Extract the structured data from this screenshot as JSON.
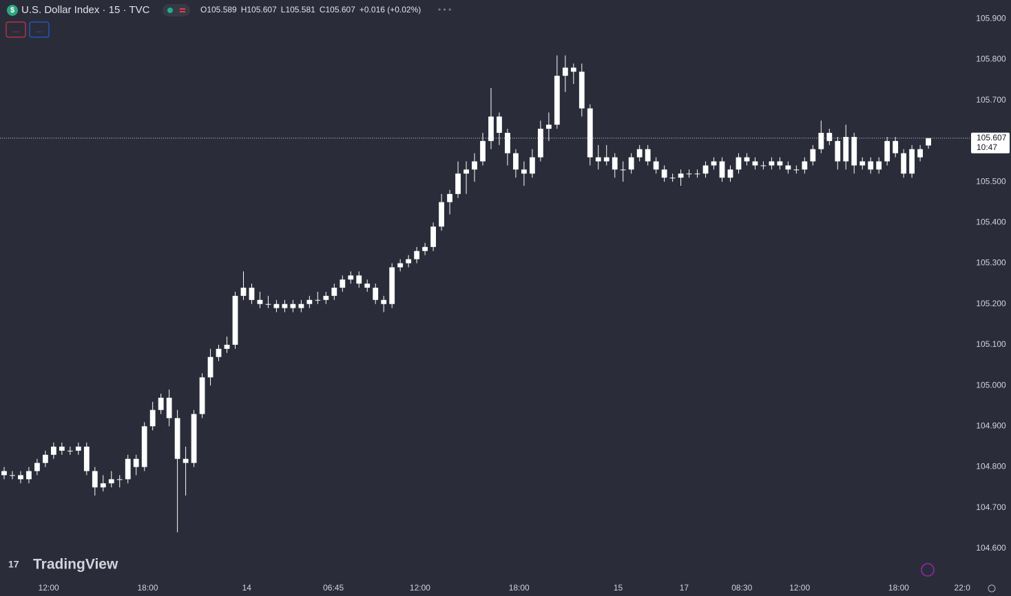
{
  "chart_data": {
    "type": "candlestick",
    "title": "U.S. Dollar Index · 15 · TVC",
    "legend_values": [
      "O105.589",
      "H105.607",
      "L105.581",
      "C105.607",
      "+0.016 (+0.02%)"
    ],
    "watermark": "TradingView",
    "countdown": "10:47",
    "color": "#ffffff",
    "open": [
      104.79,
      104.78,
      104.78,
      104.77,
      104.79,
      104.81,
      104.83,
      104.85,
      104.84,
      104.84,
      104.85,
      104.79,
      104.75,
      104.76,
      104.77,
      104.77,
      104.82,
      104.8,
      104.9,
      104.94,
      104.97,
      104.92,
      104.82,
      104.81,
      104.93,
      105.02,
      105.07,
      105.09,
      105.1,
      105.22,
      105.24,
      105.21,
      105.2,
      105.2,
      105.19,
      105.2,
      105.19,
      105.2,
      105.21,
      105.21,
      105.22,
      105.24,
      105.26,
      105.27,
      105.25,
      105.24,
      105.21,
      105.2,
      105.29,
      105.3,
      105.31,
      105.33,
      105.34,
      105.39,
      105.45,
      105.47,
      105.52,
      105.53,
      105.55,
      105.6,
      105.66,
      105.62,
      105.57,
      105.53,
      105.52,
      105.56,
      105.63,
      105.64,
      105.76,
      105.78,
      105.77,
      105.68,
      105.56,
      105.55,
      105.56,
      105.53,
      105.53,
      105.56,
      105.58,
      105.55,
      105.53,
      105.51,
      105.51,
      105.52,
      105.52,
      105.52,
      105.54,
      105.55,
      105.51,
      105.53,
      105.56,
      105.55,
      105.54,
      105.54,
      105.55,
      105.54,
      105.53,
      105.53,
      105.55,
      105.58,
      105.62,
      105.6,
      105.55,
      105.61,
      105.54,
      105.55,
      105.53,
      105.55,
      105.6,
      105.57,
      105.52,
      105.58,
      105.589
    ],
    "high": [
      104.8,
      104.79,
      104.79,
      104.8,
      104.82,
      104.84,
      104.86,
      104.86,
      104.85,
      104.86,
      104.86,
      104.8,
      104.78,
      104.79,
      104.78,
      104.83,
      104.83,
      104.91,
      104.96,
      104.98,
      104.99,
      104.94,
      104.85,
      104.94,
      105.03,
      105.09,
      105.1,
      105.12,
      105.23,
      105.28,
      105.25,
      105.23,
      105.22,
      105.21,
      105.21,
      105.21,
      105.21,
      105.22,
      105.23,
      105.23,
      105.25,
      105.27,
      105.28,
      105.28,
      105.26,
      105.25,
      105.22,
      105.3,
      105.31,
      105.32,
      105.34,
      105.35,
      105.4,
      105.47,
      105.48,
      105.55,
      105.55,
      105.57,
      105.62,
      105.73,
      105.67,
      105.63,
      105.58,
      105.55,
      105.58,
      105.65,
      105.67,
      105.81,
      105.81,
      105.79,
      105.79,
      105.69,
      105.59,
      105.59,
      105.57,
      105.55,
      105.57,
      105.59,
      105.59,
      105.56,
      105.54,
      105.52,
      105.53,
      105.53,
      105.53,
      105.55,
      105.56,
      105.56,
      105.54,
      105.57,
      105.57,
      105.56,
      105.55,
      105.56,
      105.56,
      105.55,
      105.54,
      105.56,
      105.59,
      105.65,
      105.63,
      105.61,
      105.64,
      105.62,
      105.56,
      105.56,
      105.56,
      105.61,
      105.61,
      105.58,
      105.59,
      105.59,
      105.607
    ],
    "low": [
      104.77,
      104.77,
      104.76,
      104.76,
      104.78,
      104.8,
      104.82,
      104.83,
      104.83,
      104.83,
      104.78,
      104.73,
      104.74,
      104.75,
      104.75,
      104.76,
      104.78,
      104.79,
      104.89,
      104.93,
      104.9,
      104.64,
      104.73,
      104.8,
      104.92,
      105.0,
      105.06,
      105.08,
      105.09,
      105.21,
      105.2,
      105.19,
      105.19,
      105.18,
      105.18,
      105.18,
      105.18,
      105.19,
      105.2,
      105.2,
      105.21,
      105.23,
      105.25,
      105.24,
      105.23,
      105.2,
      105.18,
      105.19,
      105.28,
      105.29,
      105.3,
      105.32,
      105.33,
      105.38,
      105.42,
      105.46,
      105.47,
      105.5,
      105.54,
      105.58,
      105.59,
      105.54,
      105.51,
      105.49,
      105.51,
      105.55,
      105.6,
      105.63,
      105.72,
      105.74,
      105.66,
      105.54,
      105.53,
      105.54,
      105.51,
      105.5,
      105.52,
      105.55,
      105.54,
      105.52,
      105.5,
      105.5,
      105.49,
      105.51,
      105.51,
      105.51,
      105.53,
      105.5,
      105.5,
      105.52,
      105.54,
      105.53,
      105.53,
      105.53,
      105.53,
      105.52,
      105.52,
      105.52,
      105.54,
      105.57,
      105.59,
      105.53,
      105.53,
      105.52,
      105.53,
      105.52,
      105.52,
      105.54,
      105.56,
      105.51,
      105.51,
      105.55,
      105.581
    ],
    "close": [
      104.78,
      104.78,
      104.77,
      104.79,
      104.81,
      104.83,
      104.85,
      104.84,
      104.84,
      104.85,
      104.79,
      104.75,
      104.76,
      104.77,
      104.77,
      104.82,
      104.8,
      104.9,
      104.94,
      104.97,
      104.92,
      104.82,
      104.81,
      104.93,
      105.02,
      105.07,
      105.09,
      105.1,
      105.22,
      105.24,
      105.21,
      105.2,
      105.2,
      105.19,
      105.2,
      105.19,
      105.2,
      105.21,
      105.21,
      105.22,
      105.24,
      105.26,
      105.27,
      105.25,
      105.24,
      105.21,
      105.2,
      105.29,
      105.3,
      105.31,
      105.33,
      105.34,
      105.39,
      105.45,
      105.47,
      105.52,
      105.53,
      105.55,
      105.6,
      105.66,
      105.62,
      105.57,
      105.53,
      105.52,
      105.56,
      105.63,
      105.64,
      105.76,
      105.78,
      105.77,
      105.68,
      105.56,
      105.55,
      105.56,
      105.53,
      105.53,
      105.56,
      105.58,
      105.55,
      105.53,
      105.51,
      105.51,
      105.52,
      105.52,
      105.52,
      105.54,
      105.55,
      105.51,
      105.53,
      105.56,
      105.55,
      105.54,
      105.54,
      105.55,
      105.54,
      105.53,
      105.53,
      105.55,
      105.58,
      105.62,
      105.6,
      105.55,
      105.61,
      105.54,
      105.55,
      105.53,
      105.55,
      105.6,
      105.57,
      105.52,
      105.58,
      105.56,
      105.607
    ],
    "xlim": [
      -0.5,
      117
    ],
    "xticks": [
      {
        "value": 5.4,
        "label": "12:00"
      },
      {
        "value": 17.4,
        "label": "18:00"
      },
      {
        "value": 29.4,
        "label": "14"
      },
      {
        "value": 39.9,
        "label": "06:45"
      },
      {
        "value": 50.4,
        "label": "12:00"
      },
      {
        "value": 62.4,
        "label": "18:00"
      },
      {
        "value": 74.4,
        "label": "15"
      },
      {
        "value": 82.4,
        "label": "17"
      },
      {
        "value": 89.4,
        "label": "08:30"
      },
      {
        "value": 96.4,
        "label": "12:00"
      },
      {
        "value": 108.4,
        "label": "18:00"
      },
      {
        "value": 116.1,
        "label": "22:0"
      }
    ],
    "ylim": [
      104.524,
      105.946
    ],
    "yticks": [
      {
        "value": 104.6,
        "label": "104.600"
      },
      {
        "value": 104.7,
        "label": "104.700"
      },
      {
        "value": 104.8,
        "label": "104.800"
      },
      {
        "value": 104.9,
        "label": "104.900"
      },
      {
        "value": 105.0,
        "label": "105.000"
      },
      {
        "value": 105.1,
        "label": "105.100"
      },
      {
        "value": 105.2,
        "label": "105.200"
      },
      {
        "value": 105.3,
        "label": "105.300"
      },
      {
        "value": 105.4,
        "label": "105.400"
      },
      {
        "value": 105.5,
        "label": "105.500"
      },
      {
        "value": 105.6,
        "label": "105.600"
      },
      {
        "value": 105.7,
        "label": "105.700"
      },
      {
        "value": 105.8,
        "label": "105.800"
      },
      {
        "value": 105.9,
        "label": "105.900"
      }
    ],
    "grid": false
  }
}
